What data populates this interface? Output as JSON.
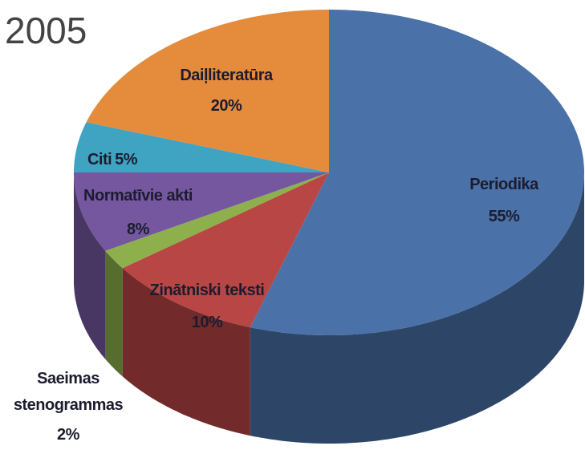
{
  "chart_data": {
    "type": "pie3d",
    "title": "2005",
    "categories": [
      "Periodika",
      "Zinātniski teksti",
      "Saeimas stenogrammas",
      "Normatīvie akti",
      "Citi",
      "Daiļliteratūra"
    ],
    "values": [
      55,
      10,
      2,
      8,
      5,
      20
    ],
    "value_labels": [
      "55%",
      "10%",
      "2%",
      "8%",
      "5%",
      "20%"
    ],
    "colors": [
      "#4a72a8",
      "#b84644",
      "#8db04c",
      "#7557a0",
      "#3fa3c2",
      "#e58b3c"
    ]
  }
}
